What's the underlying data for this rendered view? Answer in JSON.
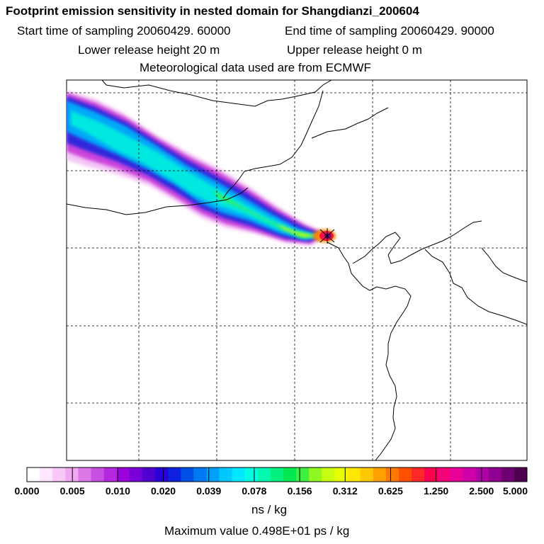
{
  "header": {
    "title": "Footprint emission sensitivity in nested domain for Shangdianzi_200604",
    "start_time": "Start time of sampling 20060429. 60000",
    "end_time": "End time of sampling 20060429. 90000",
    "lower_height": "Lower release height   20 m",
    "upper_height": "Upper release height    0 m",
    "met_source": "Meteorological data used are from ECMWF"
  },
  "colorbar": {
    "labels": [
      "0.000",
      "0.005",
      "0.010",
      "0.020",
      "0.039",
      "0.078",
      "0.156",
      "0.312",
      "0.625",
      "1.250",
      "2.500",
      "5.000"
    ],
    "colors": [
      "#ffffff",
      "#ffe6ff",
      "#f8c8f8",
      "#f0a8f0",
      "#dc78e8",
      "#c850e0",
      "#b428e0",
      "#9c00dc",
      "#7800d8",
      "#5000d0",
      "#2800d8",
      "#1020e0",
      "#0050e8",
      "#0078f0",
      "#00a0f8",
      "#00c8ff",
      "#00e8ff",
      "#00ffe0",
      "#00f8b0",
      "#00f080",
      "#00e850",
      "#40f040",
      "#90f820",
      "#c8ff10",
      "#e8ff00",
      "#ffe800",
      "#ffc800",
      "#ffa000",
      "#ff7800",
      "#ff5000",
      "#ff2828",
      "#ff0050",
      "#f80078",
      "#e80098",
      "#d000a8",
      "#b000a8",
      "#900090",
      "#700070",
      "#500050"
    ],
    "unit": "ns / kg"
  },
  "footer": {
    "max_value": "Maximum value  0.498E+01 ps / kg"
  }
}
